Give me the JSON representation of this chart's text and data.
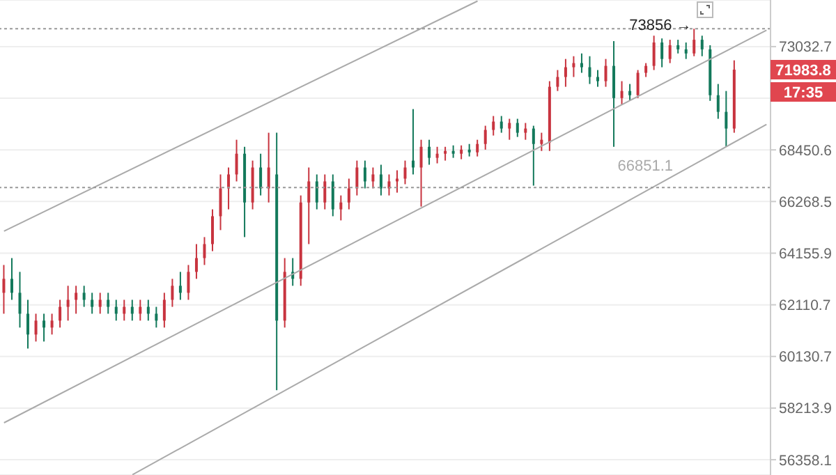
{
  "chart_data": {
    "type": "candlestick",
    "log": true,
    "grid": "y",
    "categories": [
      null,
      null,
      null,
      null,
      null,
      null,
      null,
      null,
      null,
      null,
      null,
      null,
      null,
      null,
      null,
      null,
      null,
      null,
      null,
      null,
      null,
      null,
      null,
      null,
      null,
      null,
      null,
      null,
      null,
      null,
      null,
      null,
      null,
      null,
      null,
      null,
      null,
      null,
      null,
      null,
      null,
      null,
      null,
      null,
      null,
      null,
      null,
      null,
      null,
      null,
      null,
      null,
      null,
      null,
      null,
      null,
      null,
      null,
      null,
      null,
      null,
      null,
      null,
      null,
      null,
      null,
      null,
      null,
      null,
      null,
      null,
      null,
      null,
      null,
      null,
      null,
      null,
      null,
      null,
      null,
      null,
      null,
      null,
      null,
      null,
      null,
      null,
      null,
      null,
      null,
      null,
      null,
      null,
      null,
      null,
      null
    ],
    "ohlc": [
      [
        62580,
        63682,
        61764,
        63131
      ],
      [
        63131,
        63958,
        62305,
        62580
      ],
      [
        62580,
        63407,
        61230,
        61764
      ],
      [
        61764,
        62305,
        60429,
        60963
      ],
      [
        60963,
        61764,
        60696,
        61497
      ],
      [
        61497,
        61764,
        60696,
        61230
      ],
      [
        61230,
        61764,
        60963,
        61497
      ],
      [
        61497,
        62305,
        61230,
        62031
      ],
      [
        62031,
        62856,
        61497,
        62305
      ],
      [
        62305,
        62856,
        61764,
        62580
      ],
      [
        62580,
        62856,
        62031,
        62305
      ],
      [
        62305,
        62580,
        61764,
        62031
      ],
      [
        62031,
        62580,
        61764,
        62305
      ],
      [
        62305,
        62580,
        61764,
        62031
      ],
      [
        62031,
        62305,
        61497,
        61764
      ],
      [
        61764,
        62305,
        61497,
        62031
      ],
      [
        62031,
        62305,
        61497,
        61764
      ],
      [
        61764,
        62305,
        61497,
        62031
      ],
      [
        62031,
        62305,
        61497,
        61764
      ],
      [
        61764,
        62031,
        61230,
        61497
      ],
      [
        61497,
        62580,
        61230,
        62305
      ],
      [
        62305,
        63131,
        62031,
        62856
      ],
      [
        62856,
        63407,
        62305,
        62580
      ],
      [
        62580,
        63682,
        62305,
        63407
      ],
      [
        63407,
        64522,
        63131,
        63958
      ],
      [
        63958,
        64806,
        63682,
        64522
      ],
      [
        64522,
        65944,
        64237,
        65660
      ],
      [
        65660,
        67404,
        65091,
        66816
      ],
      [
        66816,
        67698,
        65944,
        67404
      ],
      [
        67404,
        68887,
        67110,
        68286
      ],
      [
        68286,
        68583,
        64806,
        66229
      ],
      [
        66229,
        67992,
        65944,
        67698
      ],
      [
        67698,
        68286,
        66522,
        66816
      ],
      [
        66816,
        69191,
        66229,
        67698
      ],
      [
        67404,
        69191,
        58870,
        61497
      ],
      [
        61497,
        63958,
        61230,
        63407
      ],
      [
        63407,
        63958,
        62856,
        63131
      ],
      [
        63131,
        66522,
        62856,
        66229
      ],
      [
        66229,
        67698,
        64522,
        67110
      ],
      [
        67110,
        67404,
        65944,
        66229
      ],
      [
        66229,
        67404,
        65944,
        67110
      ],
      [
        67110,
        67404,
        65660,
        65944
      ],
      [
        65944,
        66522,
        65489,
        66229
      ],
      [
        66229,
        67227,
        65944,
        66816
      ],
      [
        66816,
        67992,
        66522,
        67698
      ],
      [
        67698,
        67992,
        66816,
        67110
      ],
      [
        67110,
        67698,
        66816,
        67404
      ],
      [
        67404,
        67816,
        66522,
        66816
      ],
      [
        66816,
        67404,
        66522,
        67110
      ],
      [
        67110,
        67580,
        66639,
        67227
      ],
      [
        67227,
        67992,
        66992,
        67698
      ],
      [
        67992,
        70225,
        67404,
        67698
      ],
      [
        67698,
        68887,
        66058,
        68583
      ],
      [
        68583,
        68887,
        67816,
        68110
      ],
      [
        68110,
        68583,
        67875,
        68286
      ],
      [
        68286,
        68583,
        67992,
        68404
      ],
      [
        68404,
        68644,
        68110,
        68286
      ],
      [
        68286,
        68644,
        68051,
        68461
      ],
      [
        68461,
        68705,
        68169,
        68345
      ],
      [
        68345,
        68887,
        68169,
        68705
      ],
      [
        68705,
        69495,
        68461,
        69313
      ],
      [
        69313,
        69921,
        69070,
        69677
      ],
      [
        69677,
        69921,
        69191,
        69373
      ],
      [
        69373,
        69799,
        68887,
        69617
      ],
      [
        69617,
        69799,
        69009,
        69191
      ],
      [
        69191,
        69617,
        68887,
        69373
      ],
      [
        69373,
        69495,
        66933,
        68705
      ],
      [
        68705,
        69191,
        68404,
        68887
      ],
      [
        68766,
        71466,
        68404,
        71215
      ],
      [
        71215,
        71967,
        71027,
        71654
      ],
      [
        71654,
        72469,
        71215,
        72093
      ],
      [
        72093,
        72594,
        71654,
        72281
      ],
      [
        72281,
        72720,
        71842,
        72093
      ],
      [
        72093,
        72594,
        71340,
        71654
      ],
      [
        71654,
        71967,
        71215,
        71466
      ],
      [
        71466,
        72469,
        71215,
        72155
      ],
      [
        72155,
        73285,
        68583,
        70713
      ],
      [
        70713,
        71466,
        70407,
        71027
      ],
      [
        71027,
        71340,
        70589,
        70839
      ],
      [
        70839,
        71967,
        70713,
        71842
      ],
      [
        71842,
        72281,
        71654,
        72155
      ],
      [
        72155,
        73535,
        71967,
        73221
      ],
      [
        73221,
        73409,
        72093,
        72469
      ],
      [
        72469,
        73347,
        72281,
        73096
      ],
      [
        73096,
        73347,
        72720,
        72908
      ],
      [
        72908,
        73221,
        72469,
        72720
      ],
      [
        72720,
        73856,
        72594,
        73347
      ],
      [
        73347,
        73535,
        72594,
        72908
      ],
      [
        72908,
        73096,
        70589,
        70839
      ],
      [
        70839,
        71340,
        69799,
        70103
      ],
      [
        70103,
        71027,
        68583,
        69373
      ],
      [
        69373,
        72406,
        69191,
        71983.8
      ],
      null,
      null,
      null,
      null
    ],
    "series": [
      {
        "type": "line",
        "color": "#aaaaaa",
        "values": [
          65050,
          null,
          null,
          null,
          null,
          null,
          null,
          null,
          null,
          null,
          null,
          null,
          null,
          null,
          null,
          null,
          null,
          null,
          null,
          null,
          null,
          null,
          null,
          null,
          null,
          null,
          null,
          null,
          null,
          null,
          null,
          null,
          null,
          null,
          null,
          null,
          null,
          null,
          null,
          null,
          null,
          null,
          null,
          null,
          null,
          null,
          null,
          null,
          null,
          null,
          null,
          null,
          null,
          null,
          null,
          null,
          null,
          null,
          null,
          75150,
          null,
          null,
          null,
          null,
          null,
          null,
          null,
          null,
          null,
          null,
          null,
          null,
          null,
          null,
          null,
          null,
          null,
          null,
          null,
          null,
          null,
          null,
          null,
          null,
          null,
          null,
          null,
          null,
          null,
          null,
          null,
          null,
          null,
          null,
          null,
          null
        ]
      },
      {
        "type": "line",
        "color": "#aaaaaa",
        "values": [
          57680,
          null,
          null,
          null,
          null,
          null,
          null,
          null,
          null,
          null,
          null,
          null,
          null,
          null,
          null,
          null,
          null,
          null,
          null,
          null,
          null,
          null,
          null,
          null,
          null,
          null,
          null,
          null,
          null,
          null,
          null,
          null,
          null,
          null,
          null,
          null,
          null,
          null,
          null,
          null,
          null,
          null,
          null,
          null,
          null,
          null,
          null,
          null,
          null,
          null,
          null,
          null,
          null,
          null,
          null,
          null,
          null,
          null,
          null,
          null,
          null,
          null,
          null,
          null,
          null,
          null,
          null,
          null,
          null,
          null,
          null,
          null,
          null,
          null,
          null,
          null,
          null,
          null,
          null,
          null,
          null,
          null,
          null,
          null,
          null,
          null,
          null,
          null,
          null,
          null,
          null,
          null,
          null,
          null,
          null,
          73788
        ]
      },
      {
        "type": "line",
        "color": "#aaaaaa",
        "values": [
          null,
          null,
          null,
          null,
          null,
          null,
          null,
          null,
          null,
          null,
          null,
          null,
          null,
          null,
          null,
          null,
          55830,
          null,
          null,
          null,
          null,
          null,
          null,
          null,
          null,
          null,
          null,
          null,
          null,
          null,
          null,
          null,
          null,
          null,
          null,
          null,
          null,
          null,
          null,
          null,
          null,
          null,
          null,
          null,
          null,
          null,
          null,
          null,
          null,
          null,
          null,
          null,
          null,
          null,
          null,
          null,
          null,
          null,
          null,
          null,
          null,
          null,
          null,
          null,
          null,
          null,
          null,
          null,
          null,
          null,
          null,
          null,
          null,
          null,
          null,
          null,
          null,
          null,
          null,
          null,
          null,
          null,
          null,
          null,
          null,
          null,
          null,
          null,
          null,
          null,
          null,
          null,
          null,
          null,
          null,
          69551
        ]
      }
    ],
    "ylim": [
      55820,
      75200
    ],
    "yticks": [
      73032.7,
      {
        "value": 70704.6,
        "label": null
      },
      68450.6,
      66268.5,
      64155.9,
      62110.7,
      60130.7,
      58213.9,
      56358.1
    ],
    "ref_lines": [
      {
        "axis": "y",
        "value": 73856,
        "color": "#999999",
        "line_style": "dotted"
      },
      {
        "axis": "y",
        "value": 66851.1,
        "label": "66851.1",
        "color": "#999999",
        "line_style": "dotted"
      }
    ],
    "annotations": [
      {
        "text": "73856 →",
        "y": 73856
      },
      "71983.8",
      "17:35"
    ]
  }
}
